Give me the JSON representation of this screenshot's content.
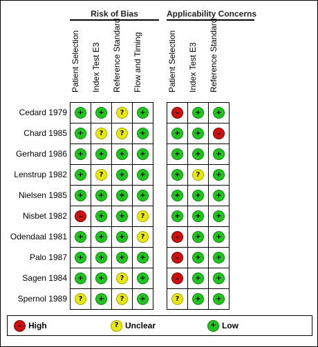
{
  "group_headers": [
    "Risk of Bias",
    "Applicability Concerns"
  ],
  "risk_columns": [
    "Patient Selection",
    "Index Test E3",
    "Reference Standard",
    "Flow and Timing"
  ],
  "applicability_columns": [
    "Patient Selection",
    "Index Test E3",
    "Reference Standard"
  ],
  "studies": [
    {
      "name": "Cedard 1979",
      "risk": [
        "low",
        "low",
        "unclear",
        "low"
      ],
      "applicability": [
        "high",
        "low",
        "low"
      ]
    },
    {
      "name": "Chard 1985",
      "risk": [
        "low",
        "unclear",
        "unclear",
        "low"
      ],
      "applicability": [
        "low",
        "low",
        "high"
      ]
    },
    {
      "name": "Gerhard 1986",
      "risk": [
        "low",
        "low",
        "low",
        "low"
      ],
      "applicability": [
        "low",
        "low",
        "low"
      ]
    },
    {
      "name": "Lenstrup 1982",
      "risk": [
        "low",
        "unclear",
        "low",
        "low"
      ],
      "applicability": [
        "low",
        "unclear",
        "low"
      ]
    },
    {
      "name": "Nielsen 1985",
      "risk": [
        "low",
        "low",
        "low",
        "low"
      ],
      "applicability": [
        "low",
        "low",
        "low"
      ]
    },
    {
      "name": "Nisbet 1982",
      "risk": [
        "high",
        "low",
        "low",
        "unclear"
      ],
      "applicability": [
        "low",
        "low",
        "low"
      ]
    },
    {
      "name": "Odendaal 1981",
      "risk": [
        "low",
        "low",
        "low",
        "unclear"
      ],
      "applicability": [
        "high",
        "low",
        "low"
      ]
    },
    {
      "name": "Palo 1987",
      "risk": [
        "low",
        "low",
        "low",
        "low"
      ],
      "applicability": [
        "high",
        "low",
        "low"
      ]
    },
    {
      "name": "Sagen 1984",
      "risk": [
        "low",
        "low",
        "unclear",
        "low"
      ],
      "applicability": [
        "high",
        "low",
        "low"
      ]
    },
    {
      "name": "Spernol 1989",
      "risk": [
        "unclear",
        "low",
        "unclear",
        "low"
      ],
      "applicability": [
        "unclear",
        "low",
        "low"
      ]
    }
  ],
  "judgements": {
    "low": {
      "symbol": "+",
      "color": "#1fc41f"
    },
    "unclear": {
      "symbol": "?",
      "color": "#e8e810"
    },
    "high": {
      "symbol": "–",
      "color": "#cc1111"
    }
  },
  "legend": [
    {
      "level": "high",
      "label": "High"
    },
    {
      "level": "unclear",
      "label": "Unclear"
    },
    {
      "level": "low",
      "label": "Low"
    }
  ]
}
